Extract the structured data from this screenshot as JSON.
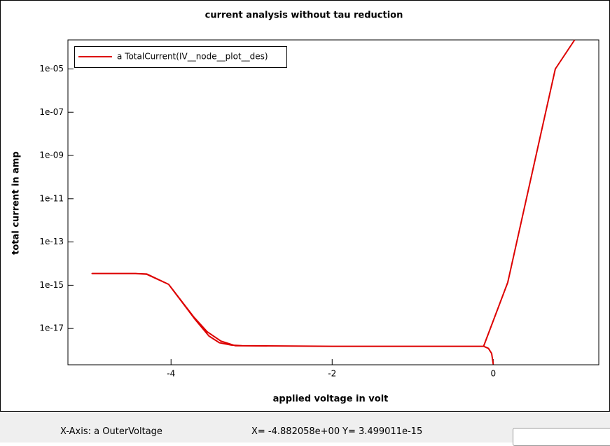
{
  "chart_data": {
    "type": "line",
    "title": "current analysis without tau reduction",
    "x_label": "applied voltage in volt",
    "y_label": "total current in amp",
    "log_y": true,
    "legend": "upper-left",
    "xlim": [
      -5.28,
      1.31
    ],
    "xticks": [
      -4,
      -2,
      0
    ],
    "ylim": [
      2.1e-19,
      0.00022
    ],
    "yticks": [
      {
        "value": 1e-05,
        "label": "1e-05"
      },
      {
        "value": 1e-07,
        "label": "1e-07"
      },
      {
        "value": 1e-09,
        "label": "1e-09"
      },
      {
        "value": 1e-11,
        "label": "1e-11"
      },
      {
        "value": 1e-13,
        "label": "1e-13"
      },
      {
        "value": 1e-15,
        "label": "1e-15"
      },
      {
        "value": 1e-17,
        "label": "1e-17"
      }
    ],
    "series": [
      {
        "name": "a TotalCurrent(IV__node__plot__des)",
        "color": "#dd0000",
        "x": [
          0,
          -0.02,
          -0.06,
          -0.12,
          -2,
          -3.12,
          -3.25,
          -3.4,
          -3.53,
          -3.7,
          -4.03,
          -4.3,
          -4.44,
          -4.98,
          -4.44,
          -4.3,
          -4.03,
          -3.72,
          -3.55,
          -3.38,
          -3.2,
          -2,
          -0.12,
          0.18,
          0.77,
          1.01
        ],
        "values": [
          2.2e-19,
          7e-19,
          1.2e-18,
          1.5e-18,
          1.5e-18,
          1.6e-18,
          1.7e-18,
          2.2e-18,
          4.5e-18,
          2.6e-17,
          1.1e-15,
          3.2e-15,
          3.5e-15,
          3.5e-15,
          3.5e-15,
          3.3e-15,
          1.1e-15,
          3.5e-17,
          7e-18,
          2.6e-18,
          1.6e-18,
          1.5e-18,
          1.5e-18,
          1.35e-15,
          1e-05,
          0.00022
        ]
      }
    ]
  },
  "status_bar": {
    "axis": "X-Axis: a OuterVoltage",
    "x_readout": "X= -4.882058e+00",
    "y_readout": "Y= 3.499011e-15"
  }
}
